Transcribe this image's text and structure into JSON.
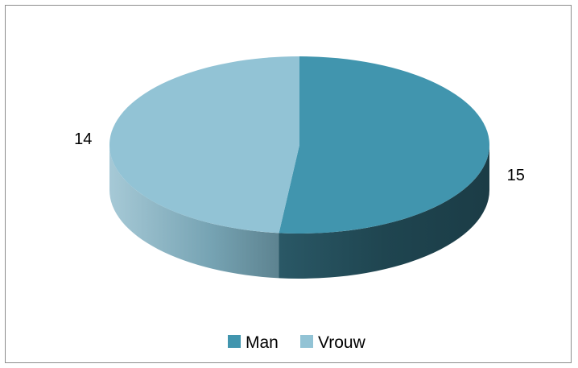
{
  "chart_data": {
    "type": "pie",
    "style": "3d",
    "categories": [
      "Man",
      "Vrouw"
    ],
    "values": [
      15,
      14
    ],
    "colors": {
      "Man": "#4195ae",
      "Vrouw": "#92c3d5"
    },
    "legend_position": "bottom",
    "title": ""
  }
}
